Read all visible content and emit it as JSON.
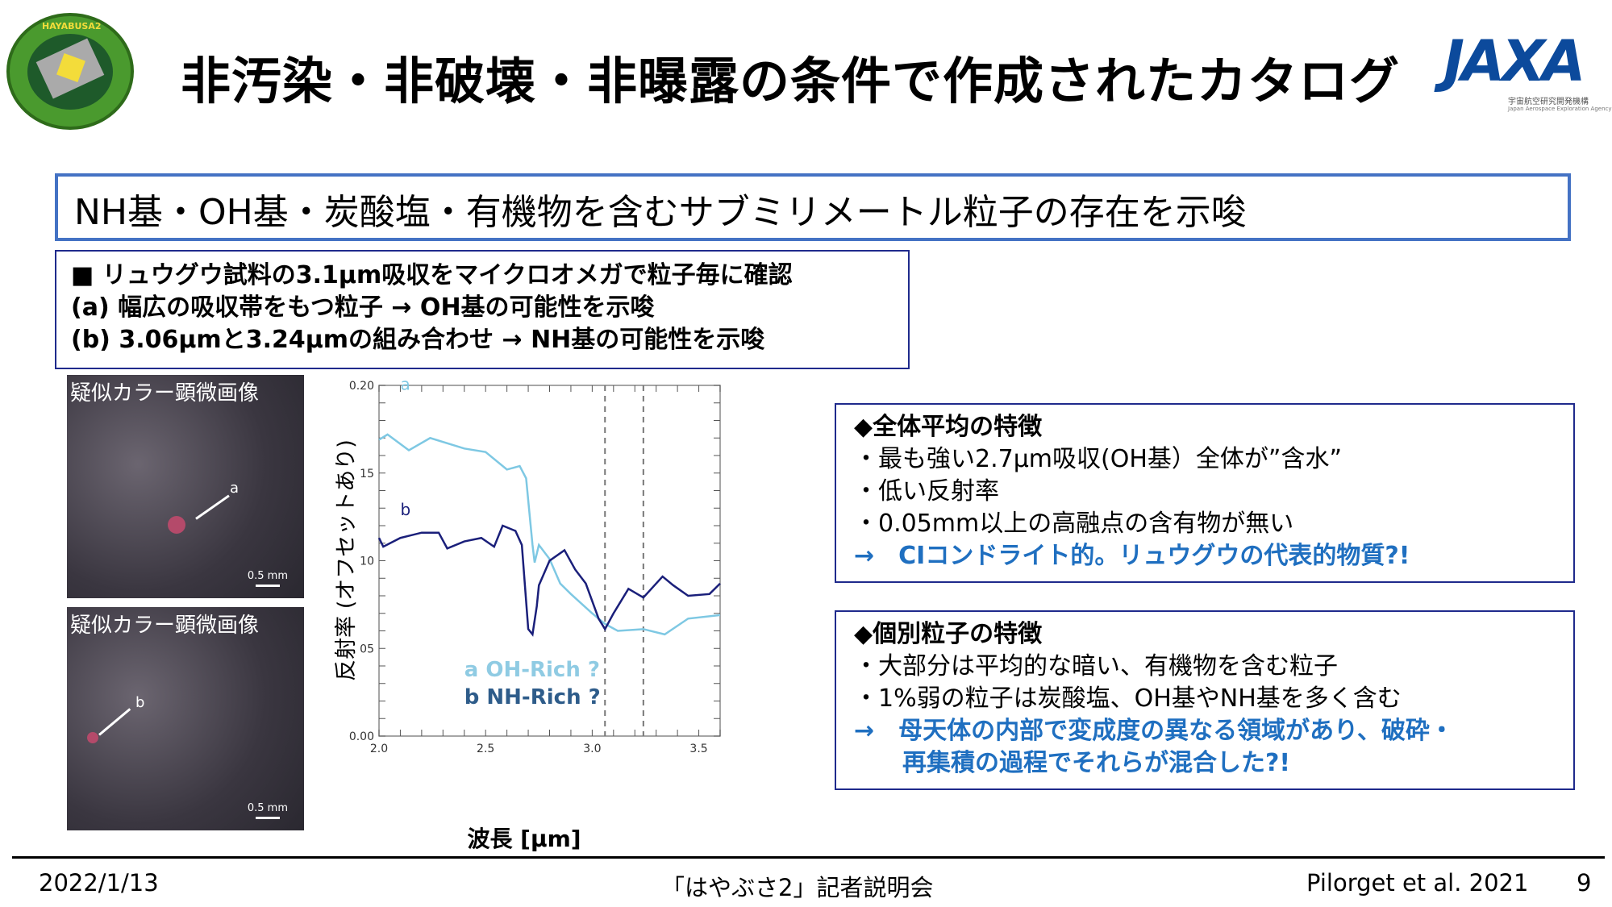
{
  "header": {
    "title": "非汚染・非破壊・非曝露の条件で作成されたカタログ",
    "logo_left_text": "HAYABUSA2",
    "logo_right_text": "JAXA",
    "logo_right_sub": "宇宙航空研究開発機構",
    "logo_right_sub_en": "Japan Aerospace Exploration Agency"
  },
  "banner": {
    "text": "NH基・OH基・炭酸塩・有機物を含むサブミリメートル粒子の存在を示唆"
  },
  "summary": {
    "lines": [
      "■ リュウグウ試料の3.1μm吸収をマイクロオメガで粒子毎に確認",
      "(a) 幅広の吸収帯をもつ粒子 → OH基の可能性を示唆",
      "(b) 3.06μmと3.24μmの組み合わせ → NH基の可能性を示唆"
    ]
  },
  "photos": [
    {
      "label": "疑似カラー顕微画像",
      "tag": "a",
      "scale": "0.5 mm"
    },
    {
      "label": "疑似カラー顕微画像",
      "tag": "b",
      "scale": "0.5 mm"
    }
  ],
  "chart_data": {
    "type": "line",
    "xlabel": "波長 [μm]",
    "ylabel": "反射率 (オフセットあり)",
    "xlim": [
      2.0,
      3.6
    ],
    "ylim": [
      0.0,
      0.2
    ],
    "x_ticks": [
      "2.0",
      "2.5",
      "3.0",
      "3.5"
    ],
    "y_ticks": [
      {
        "v": 0.0,
        "t": "0.00"
      },
      {
        "v": 0.05,
        "t": "05"
      },
      {
        "v": 0.1,
        "t": "10"
      },
      {
        "v": 0.15,
        "t": "15"
      },
      {
        "v": 0.2,
        "t": "0.20"
      }
    ],
    "vlines": [
      3.06,
      3.24
    ],
    "legend": [
      "a OH-Rich ?",
      "b NH-Rich ?"
    ],
    "series": [
      {
        "name": "a",
        "color": "#7ec8e3",
        "x": [
          2.0,
          2.04,
          2.14,
          2.24,
          2.4,
          2.5,
          2.6,
          2.66,
          2.69,
          2.72,
          2.73,
          2.75,
          2.8,
          2.85,
          2.9,
          3.0,
          3.06,
          3.12,
          3.24,
          3.34,
          3.45,
          3.6
        ],
        "y": [
          0.169,
          0.172,
          0.163,
          0.17,
          0.164,
          0.162,
          0.152,
          0.154,
          0.147,
          0.109,
          0.099,
          0.109,
          0.101,
          0.087,
          0.081,
          0.07,
          0.064,
          0.06,
          0.061,
          0.058,
          0.067,
          0.069
        ]
      },
      {
        "name": "b",
        "color": "#1a1f7a",
        "x": [
          2.0,
          2.02,
          2.1,
          2.2,
          2.28,
          2.32,
          2.4,
          2.48,
          2.54,
          2.58,
          2.64,
          2.67,
          2.7,
          2.72,
          2.74,
          2.75,
          2.8,
          2.87,
          2.92,
          2.97,
          3.03,
          3.06,
          3.1,
          3.17,
          3.24,
          3.33,
          3.38,
          3.45,
          3.55,
          3.6
        ],
        "y": [
          0.113,
          0.108,
          0.113,
          0.116,
          0.116,
          0.107,
          0.111,
          0.113,
          0.108,
          0.12,
          0.117,
          0.109,
          0.061,
          0.058,
          0.074,
          0.086,
          0.1,
          0.106,
          0.095,
          0.087,
          0.067,
          0.061,
          0.07,
          0.084,
          0.079,
          0.091,
          0.086,
          0.08,
          0.081,
          0.087
        ]
      }
    ]
  },
  "right_boxes": [
    {
      "heading": "◆全体平均の特徴",
      "items": [
        "・最も強い2.7μm吸収(OH基）全体が”含水”",
        "・低い反射率",
        "・0.05mm以上の高融点の含有物が無い"
      ],
      "conclusion": [
        "→　CIコンドライト的。リュウグウの代表的物質?!"
      ]
    },
    {
      "heading": "◆個別粒子の特徴",
      "items": [
        "・大部分は平均的な暗い、有機物を含む粒子",
        "・1%弱の粒子は炭酸塩、OH基やNH基を多く含む"
      ],
      "conclusion": [
        "→　母天体の内部で変成度の異なる領域があり、破砕・",
        "　　再集積の過程でそれらが混合した?!"
      ]
    }
  ],
  "footer": {
    "date": "2022/1/13",
    "event": "「はやぶさ2」記者説明会",
    "citation": "Pilorget et al. 2021",
    "page": "9"
  }
}
